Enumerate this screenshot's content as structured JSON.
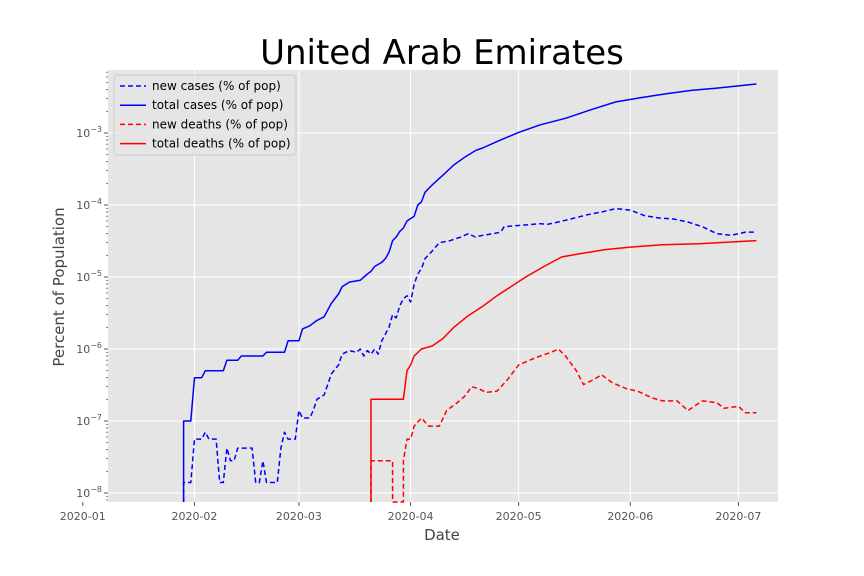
{
  "chart_data": {
    "type": "line",
    "title": "United Arab Emirates",
    "xlabel": "Date",
    "ylabel": "Percent of Population",
    "yscale": "log",
    "grid": true,
    "legend_position": "top-left",
    "xlim": [
      "2020-01-08",
      "2020-07-12"
    ],
    "ylim": [
      7.5e-09,
      0.0075
    ],
    "x_ticks": [
      "2020-01-01",
      "2020-02-01",
      "2020-03-01",
      "2020-04-01",
      "2020-05-01",
      "2020-06-01",
      "2020-07-01"
    ],
    "x_tick_labels": [
      "2020-01",
      "2020-02",
      "2020-03",
      "2020-04",
      "2020-05",
      "2020-06",
      "2020-07"
    ],
    "y_ticks": [
      1e-08,
      1e-07,
      1e-06,
      1e-05,
      0.0001,
      0.001
    ],
    "y_tick_labels": [
      {
        "base": "10",
        "exp": "−8"
      },
      {
        "base": "10",
        "exp": "−7"
      },
      {
        "base": "10",
        "exp": "−6"
      },
      {
        "base": "10",
        "exp": "−5"
      },
      {
        "base": "10",
        "exp": "−4"
      },
      {
        "base": "10",
        "exp": "−3"
      }
    ],
    "series": [
      {
        "name": "new cases (% of pop)",
        "color": "#0000ff",
        "dash": "dashed",
        "points": [
          [
            "2020-01-29",
            7e-09
          ],
          [
            "2020-01-29",
            1.4e-08
          ],
          [
            "2020-01-31",
            1.4e-08
          ],
          [
            "2020-02-01",
            5.6e-08
          ],
          [
            "2020-02-03",
            5.6e-08
          ],
          [
            "2020-02-04",
            7e-08
          ],
          [
            "2020-02-05",
            5.6e-08
          ],
          [
            "2020-02-07",
            5.6e-08
          ],
          [
            "2020-02-08",
            1.4e-08
          ],
          [
            "2020-02-09",
            1.4e-08
          ],
          [
            "2020-02-10",
            4.2e-08
          ],
          [
            "2020-02-11",
            2.8e-08
          ],
          [
            "2020-02-12",
            2.8e-08
          ],
          [
            "2020-02-13",
            4.2e-08
          ],
          [
            "2020-02-17",
            4.2e-08
          ],
          [
            "2020-02-18",
            1.4e-08
          ],
          [
            "2020-02-19",
            1.4e-08
          ],
          [
            "2020-02-20",
            2.8e-08
          ],
          [
            "2020-02-21",
            1.4e-08
          ],
          [
            "2020-02-24",
            1.4e-08
          ],
          [
            "2020-02-25",
            4.2e-08
          ],
          [
            "2020-02-26",
            7e-08
          ],
          [
            "2020-02-27",
            5.6e-08
          ],
          [
            "2020-02-29",
            5.6e-08
          ],
          [
            "2020-03-01",
            1.4e-07
          ],
          [
            "2020-03-02",
            1.1e-07
          ],
          [
            "2020-03-04",
            1.1e-07
          ],
          [
            "2020-03-05",
            1.4e-07
          ],
          [
            "2020-03-06",
            2e-07
          ],
          [
            "2020-03-08",
            2.3e-07
          ],
          [
            "2020-03-09",
            3.2e-07
          ],
          [
            "2020-03-10",
            4.5e-07
          ],
          [
            "2020-03-12",
            6e-07
          ],
          [
            "2020-03-13",
            8.5e-07
          ],
          [
            "2020-03-15",
            9.5e-07
          ],
          [
            "2020-03-17",
            9e-07
          ],
          [
            "2020-03-18",
            1e-06
          ],
          [
            "2020-03-19",
            8e-07
          ],
          [
            "2020-03-20",
            9.5e-07
          ],
          [
            "2020-03-21",
            8.5e-07
          ],
          [
            "2020-03-22",
            1e-06
          ],
          [
            "2020-03-23",
            8.5e-07
          ],
          [
            "2020-03-24",
            1.3e-06
          ],
          [
            "2020-03-26",
            2e-06
          ],
          [
            "2020-03-27",
            3e-06
          ],
          [
            "2020-03-28",
            2.7e-06
          ],
          [
            "2020-03-29",
            4e-06
          ],
          [
            "2020-03-30",
            5e-06
          ],
          [
            "2020-03-31",
            5.5e-06
          ],
          [
            "2020-04-01",
            4.5e-06
          ],
          [
            "2020-04-02",
            8e-06
          ],
          [
            "2020-04-03",
            1.1e-05
          ],
          [
            "2020-04-04",
            1.3e-05
          ],
          [
            "2020-04-05",
            1.8e-05
          ],
          [
            "2020-04-07",
            2.3e-05
          ],
          [
            "2020-04-09",
            3e-05
          ],
          [
            "2020-04-12",
            3.2e-05
          ],
          [
            "2020-04-15",
            3.6e-05
          ],
          [
            "2020-04-17",
            4e-05
          ],
          [
            "2020-04-19",
            3.6e-05
          ],
          [
            "2020-04-21",
            3.8e-05
          ],
          [
            "2020-04-24",
            4e-05
          ],
          [
            "2020-04-26",
            4.2e-05
          ],
          [
            "2020-04-27",
            5e-05
          ],
          [
            "2020-05-01",
            5.2e-05
          ],
          [
            "2020-05-07",
            5.5e-05
          ],
          [
            "2020-05-09",
            5.4e-05
          ],
          [
            "2020-05-12",
            5.8e-05
          ],
          [
            "2020-05-16",
            6.5e-05
          ],
          [
            "2020-05-20",
            7.3e-05
          ],
          [
            "2020-05-24",
            8e-05
          ],
          [
            "2020-05-28",
            8.9e-05
          ],
          [
            "2020-06-01",
            8.5e-05
          ],
          [
            "2020-06-05",
            7.1e-05
          ],
          [
            "2020-06-09",
            6.6e-05
          ],
          [
            "2020-06-13",
            6.4e-05
          ],
          [
            "2020-06-17",
            5.8e-05
          ],
          [
            "2020-06-21",
            5e-05
          ],
          [
            "2020-06-25",
            4e-05
          ],
          [
            "2020-06-29",
            3.8e-05
          ],
          [
            "2020-07-03",
            4.2e-05
          ],
          [
            "2020-07-06",
            4.2e-05
          ]
        ]
      },
      {
        "name": "total cases (% of pop)",
        "color": "#0000ff",
        "dash": "solid",
        "points": [
          [
            "2020-01-29",
            7e-09
          ],
          [
            "2020-01-29",
            1e-07
          ],
          [
            "2020-01-31",
            1e-07
          ],
          [
            "2020-02-01",
            4e-07
          ],
          [
            "2020-02-03",
            4e-07
          ],
          [
            "2020-02-04",
            5e-07
          ],
          [
            "2020-02-09",
            5e-07
          ],
          [
            "2020-02-10",
            7e-07
          ],
          [
            "2020-02-13",
            7e-07
          ],
          [
            "2020-02-14",
            8e-07
          ],
          [
            "2020-02-20",
            8e-07
          ],
          [
            "2020-02-21",
            9e-07
          ],
          [
            "2020-02-26",
            9e-07
          ],
          [
            "2020-02-27",
            1.3e-06
          ],
          [
            "2020-03-01",
            1.3e-06
          ],
          [
            "2020-03-02",
            1.9e-06
          ],
          [
            "2020-03-04",
            2.1e-06
          ],
          [
            "2020-03-06",
            2.5e-06
          ],
          [
            "2020-03-08",
            2.8e-06
          ],
          [
            "2020-03-10",
            4.3e-06
          ],
          [
            "2020-03-12",
            5.8e-06
          ],
          [
            "2020-03-13",
            7.3e-06
          ],
          [
            "2020-03-15",
            8.5e-06
          ],
          [
            "2020-03-18",
            9e-06
          ],
          [
            "2020-03-20",
            1.1e-05
          ],
          [
            "2020-03-21",
            1.2e-05
          ],
          [
            "2020-03-22",
            1.4e-05
          ],
          [
            "2020-03-24",
            1.6e-05
          ],
          [
            "2020-03-25",
            1.8e-05
          ],
          [
            "2020-03-26",
            2.2e-05
          ],
          [
            "2020-03-27",
            3.2e-05
          ],
          [
            "2020-03-28",
            3.6e-05
          ],
          [
            "2020-03-29",
            4.3e-05
          ],
          [
            "2020-03-30",
            4.8e-05
          ],
          [
            "2020-03-31",
            6e-05
          ],
          [
            "2020-04-02",
            7e-05
          ],
          [
            "2020-04-03",
            0.0001
          ],
          [
            "2020-04-04",
            0.00011
          ],
          [
            "2020-04-05",
            0.00015
          ],
          [
            "2020-04-07",
            0.00019
          ],
          [
            "2020-04-10",
            0.00026
          ],
          [
            "2020-04-13",
            0.00036
          ],
          [
            "2020-04-16",
            0.00046
          ],
          [
            "2020-04-19",
            0.00057
          ],
          [
            "2020-04-21",
            0.00062
          ],
          [
            "2020-04-25",
            0.00076
          ],
          [
            "2020-05-01",
            0.00102
          ],
          [
            "2020-05-07",
            0.0013
          ],
          [
            "2020-05-14",
            0.0016
          ],
          [
            "2020-05-21",
            0.0021
          ],
          [
            "2020-05-28",
            0.0027
          ],
          [
            "2020-06-04",
            0.0031
          ],
          [
            "2020-06-11",
            0.0035
          ],
          [
            "2020-06-18",
            0.0039
          ],
          [
            "2020-06-25",
            0.0042
          ],
          [
            "2020-07-06",
            0.0048
          ]
        ]
      },
      {
        "name": "new deaths (% of pop)",
        "color": "#ff0000",
        "dash": "dashed",
        "points": [
          [
            "2020-03-21",
            7e-09
          ],
          [
            "2020-03-21",
            2.8e-08
          ],
          [
            "2020-03-27",
            2.8e-08
          ],
          [
            "2020-03-27",
            7e-09
          ],
          [
            "2020-03-30",
            7e-09
          ],
          [
            "2020-03-30",
            2.8e-08
          ],
          [
            "2020-03-31",
            5.6e-08
          ],
          [
            "2020-04-01",
            5.6e-08
          ],
          [
            "2020-04-02",
            8.5e-08
          ],
          [
            "2020-04-04",
            1.1e-07
          ],
          [
            "2020-04-06",
            8.5e-08
          ],
          [
            "2020-04-09",
            8.5e-08
          ],
          [
            "2020-04-11",
            1.4e-07
          ],
          [
            "2020-04-14",
            1.8e-07
          ],
          [
            "2020-04-16",
            2.2e-07
          ],
          [
            "2020-04-18",
            3e-07
          ],
          [
            "2020-04-20",
            2.8e-07
          ],
          [
            "2020-04-22",
            2.5e-07
          ],
          [
            "2020-04-25",
            2.6e-07
          ],
          [
            "2020-04-28",
            3.8e-07
          ],
          [
            "2020-05-01",
            6e-07
          ],
          [
            "2020-05-04",
            7e-07
          ],
          [
            "2020-05-07",
            8e-07
          ],
          [
            "2020-05-10",
            9e-07
          ],
          [
            "2020-05-12",
            1e-06
          ],
          [
            "2020-05-14",
            8e-07
          ],
          [
            "2020-05-17",
            5e-07
          ],
          [
            "2020-05-19",
            3.2e-07
          ],
          [
            "2020-05-22",
            3.8e-07
          ],
          [
            "2020-05-24",
            4.4e-07
          ],
          [
            "2020-05-27",
            3.4e-07
          ],
          [
            "2020-05-31",
            2.8e-07
          ],
          [
            "2020-06-03",
            2.6e-07
          ],
          [
            "2020-06-07",
            2.1e-07
          ],
          [
            "2020-06-10",
            1.9e-07
          ],
          [
            "2020-06-14",
            1.9e-07
          ],
          [
            "2020-06-17",
            1.4e-07
          ],
          [
            "2020-06-21",
            1.9e-07
          ],
          [
            "2020-06-25",
            1.8e-07
          ],
          [
            "2020-06-27",
            1.5e-07
          ],
          [
            "2020-07-01",
            1.6e-07
          ],
          [
            "2020-07-03",
            1.3e-07
          ],
          [
            "2020-07-06",
            1.3e-07
          ]
        ]
      },
      {
        "name": "total deaths (% of pop)",
        "color": "#ff0000",
        "dash": "solid",
        "points": [
          [
            "2020-03-21",
            7e-09
          ],
          [
            "2020-03-21",
            2e-07
          ],
          [
            "2020-03-30",
            2e-07
          ],
          [
            "2020-03-31",
            5e-07
          ],
          [
            "2020-04-01",
            6e-07
          ],
          [
            "2020-04-02",
            8e-07
          ],
          [
            "2020-04-04",
            1e-06
          ],
          [
            "2020-04-07",
            1.1e-06
          ],
          [
            "2020-04-10",
            1.4e-06
          ],
          [
            "2020-04-13",
            2e-06
          ],
          [
            "2020-04-17",
            2.9e-06
          ],
          [
            "2020-04-21",
            3.9e-06
          ],
          [
            "2020-04-25",
            5.5e-06
          ],
          [
            "2020-04-29",
            7.4e-06
          ],
          [
            "2020-05-03",
            1e-05
          ],
          [
            "2020-05-08",
            1.4e-05
          ],
          [
            "2020-05-13",
            1.9e-05
          ],
          [
            "2020-05-18",
            2.1e-05
          ],
          [
            "2020-05-25",
            2.4e-05
          ],
          [
            "2020-06-01",
            2.6e-05
          ],
          [
            "2020-06-10",
            2.8e-05
          ],
          [
            "2020-06-20",
            2.9e-05
          ],
          [
            "2020-07-06",
            3.2e-05
          ]
        ]
      }
    ]
  }
}
